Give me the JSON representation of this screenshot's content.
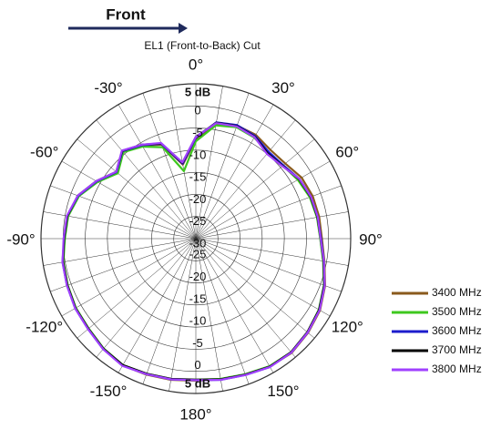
{
  "chart_data": {
    "type": "polar",
    "title": "EL1 (Front-to-Back) Cut",
    "direction_label": "Front",
    "x": [
      -180,
      -170,
      -160,
      -150,
      -140,
      -130,
      -120,
      -110,
      -100,
      -90,
      -80,
      -70,
      -60,
      -50,
      -40,
      -30,
      -20,
      -10,
      0,
      10,
      20,
      30,
      40,
      50,
      60,
      70,
      80,
      90,
      100,
      110,
      120,
      130,
      140,
      150,
      160,
      170
    ],
    "xticks": [
      {
        "value": 0,
        "label": "0°"
      },
      {
        "value": 30,
        "label": "30°"
      },
      {
        "value": 60,
        "label": "60°"
      },
      {
        "value": 90,
        "label": "90°"
      },
      {
        "value": 120,
        "label": "120°"
      },
      {
        "value": 150,
        "label": "150°"
      },
      {
        "value": 180,
        "label": "180°"
      },
      {
        "value": -150,
        "label": "-150°"
      },
      {
        "value": -120,
        "label": "-120°"
      },
      {
        "value": -90,
        "label": "-90°"
      },
      {
        "value": -60,
        "label": "-60°"
      },
      {
        "value": -30,
        "label": "-30°"
      }
    ],
    "ylim": [
      -30,
      5
    ],
    "yticks": [
      -30,
      -25,
      -20,
      -15,
      -10,
      -5,
      0,
      {
        "value": 5,
        "label": "5 dB"
      }
    ],
    "grid": true,
    "series": [
      {
        "name": "3400 MHz",
        "color": "#8a5a1c",
        "values": [
          2.1,
          2.4,
          2.7,
          3.1,
          2.5,
          1.7,
          1.4,
          0.9,
          0.5,
          -0.3,
          -0.6,
          -1.8,
          -4.2,
          -6.8,
          -4.3,
          -5.7,
          -7.4,
          -13,
          -7.5,
          -3.8,
          -2.8,
          -2.9,
          -3.8,
          -3.6,
          -2.4,
          -1.9,
          -1.7,
          -1.5,
          -0.5,
          1.1,
          2.4,
          3.1,
          3.7,
          3.4,
          2.7,
          2.3
        ]
      },
      {
        "name": "3500 MHz",
        "color": "#3ec81e",
        "values": [
          1.9,
          2.2,
          2.5,
          3,
          2.4,
          1.6,
          1.3,
          0.8,
          0.4,
          -0.4,
          -0.7,
          -1.9,
          -4.4,
          -7,
          -4.5,
          -6,
          -8,
          -14.5,
          -8,
          -4,
          -3.2,
          -3.6,
          -4.6,
          -4.3,
          -3.4,
          -2.6,
          -2.2,
          -1.9,
          -0.8,
          0.8,
          2.1,
          2.9,
          3.5,
          3.3,
          2.6,
          2.2
        ]
      },
      {
        "name": "3600 MHz",
        "color": "#1c1ccc",
        "values": [
          2,
          2.3,
          2.6,
          3.1,
          2.6,
          1.8,
          1.5,
          1,
          0.6,
          -0.2,
          -0.5,
          -1.7,
          -4.1,
          -6.6,
          -4.2,
          -5.6,
          -7.2,
          -12.8,
          -7.2,
          -3.3,
          -2.7,
          -3.2,
          -4.4,
          -4.2,
          -3,
          -2.3,
          -2,
          -1.7,
          -0.6,
          0.9,
          2.2,
          3,
          3.6,
          3.5,
          2.8,
          2.4
        ]
      },
      {
        "name": "3700 MHz",
        "color": "#000000",
        "values": [
          1.9,
          2.2,
          2.5,
          3,
          2.5,
          1.7,
          1.4,
          0.9,
          0.5,
          -0.2,
          -0.5,
          -1.6,
          -4,
          -6.5,
          -4.1,
          -5.5,
          -7.1,
          -12.6,
          -7,
          -3.4,
          -2.9,
          -3.4,
          -4.8,
          -4.4,
          -3.1,
          -2.4,
          -2.1,
          -1.8,
          -0.7,
          0.9,
          2.2,
          2.9,
          3.5,
          3.4,
          2.7,
          2.3
        ]
      },
      {
        "name": "3800 MHz",
        "color": "#a040ff",
        "values": [
          2,
          2.3,
          2.6,
          3.2,
          2.6,
          1.8,
          1.5,
          1,
          0.6,
          -0.1,
          -0.4,
          -1.6,
          -4,
          -6.5,
          -4,
          -5.5,
          -7,
          -12.5,
          -7,
          -3.5,
          -3,
          -3.5,
          -5,
          -4.5,
          -3,
          -2.3,
          -2,
          -1.8,
          -0.6,
          1,
          2.3,
          3,
          3.6,
          3.5,
          2.8,
          2.4
        ]
      }
    ]
  }
}
